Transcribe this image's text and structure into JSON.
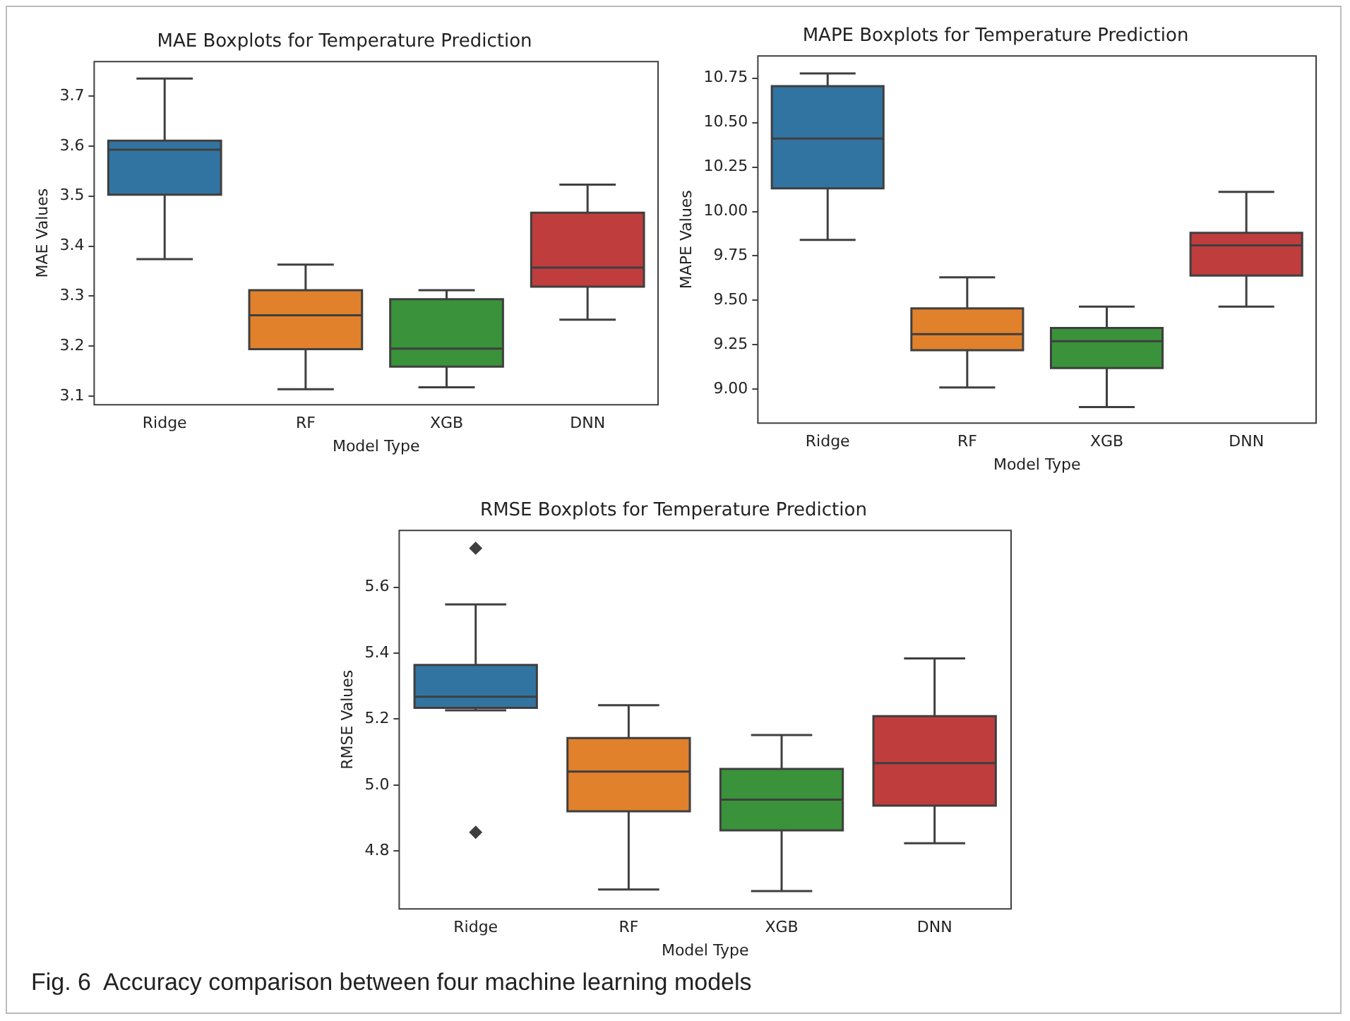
{
  "chart_data": [
    {
      "type": "box",
      "title": "MAE Boxplots for Temperature Prediction",
      "xlabel": "Model Type",
      "ylabel": "MAE Values",
      "categories": [
        "Ridge",
        "RF",
        "XGB",
        "DNN"
      ],
      "colors": [
        "#3274a1",
        "#e1812c",
        "#3a923a",
        "#c03d3e"
      ],
      "boxes": [
        {
          "low": 3.374,
          "q1": 3.503,
          "median": 3.593,
          "q3": 3.611,
          "high": 3.735
        },
        {
          "low": 3.114,
          "q1": 3.194,
          "median": 3.262,
          "q3": 3.312,
          "high": 3.363
        },
        {
          "low": 3.118,
          "q1": 3.159,
          "median": 3.195,
          "q3": 3.294,
          "high": 3.312
        },
        {
          "low": 3.253,
          "q1": 3.319,
          "median": 3.357,
          "q3": 3.467,
          "high": 3.523
        }
      ],
      "ylim": [
        3.083,
        3.769
      ],
      "yticks": [
        3.1,
        3.2,
        3.3,
        3.4,
        3.5,
        3.6,
        3.7
      ],
      "legend": false,
      "grid": false
    },
    {
      "type": "box",
      "title": "MAPE Boxplots for Temperature Prediction",
      "xlabel": "Model Type",
      "ylabel": "MAPE Values",
      "categories": [
        "Ridge",
        "RF",
        "XGB",
        "DNN"
      ],
      "colors": [
        "#3274a1",
        "#e1812c",
        "#3a923a",
        "#c03d3e"
      ],
      "boxes": [
        {
          "low": 9.84,
          "q1": 10.13,
          "median": 10.41,
          "q3": 10.705,
          "high": 10.777
        },
        {
          "low": 9.01,
          "q1": 9.22,
          "median": 9.31,
          "q3": 9.455,
          "high": 9.63
        },
        {
          "low": 8.9,
          "q1": 9.12,
          "median": 9.27,
          "q3": 9.345,
          "high": 9.465
        },
        {
          "low": 9.465,
          "q1": 9.64,
          "median": 9.81,
          "q3": 9.88,
          "high": 10.11
        }
      ],
      "ylim": [
        8.81,
        10.875
      ],
      "yticks": [
        {
          "value": 9,
          "label": "9.00"
        },
        9.25,
        {
          "value": 9.5,
          "label": "9.50"
        },
        9.75,
        {
          "value": 10,
          "label": "10.00"
        },
        10.25,
        {
          "value": 10.5,
          "label": "10.50"
        },
        10.75
      ],
      "legend": false,
      "grid": false
    },
    {
      "type": "box",
      "title": "RMSE Boxplots for Temperature Prediction",
      "xlabel": "Model Type",
      "ylabel": "RMSE Values",
      "categories": [
        "Ridge",
        "RF",
        "XGB",
        "DNN"
      ],
      "colors": [
        "#3274a1",
        "#e1812c",
        "#3a923a",
        "#c03d3e"
      ],
      "boxes": [
        {
          "low": 5.227,
          "q1": 5.234,
          "median": 5.268,
          "q3": 5.364,
          "high": 5.548,
          "outliers": [
            5.718,
            4.857
          ]
        },
        {
          "low": 4.684,
          "q1": 4.921,
          "median": 5.041,
          "q3": 5.143,
          "high": 5.242
        },
        {
          "low": 4.679,
          "q1": 4.863,
          "median": 4.956,
          "q3": 5.049,
          "high": 5.152
        },
        {
          "low": 4.824,
          "q1": 4.938,
          "median": 5.067,
          "q3": 5.209,
          "high": 5.384
        }
      ],
      "ylim": [
        4.625,
        5.772
      ],
      "yticks": [
        4.8,
        {
          "value": 5,
          "label": "5.0"
        },
        5.2,
        5.4,
        5.6
      ],
      "legend": false,
      "grid": false,
      "annotations": [
        "Fig. 6  Accuracy comparison between four machine learning models"
      ]
    }
  ]
}
